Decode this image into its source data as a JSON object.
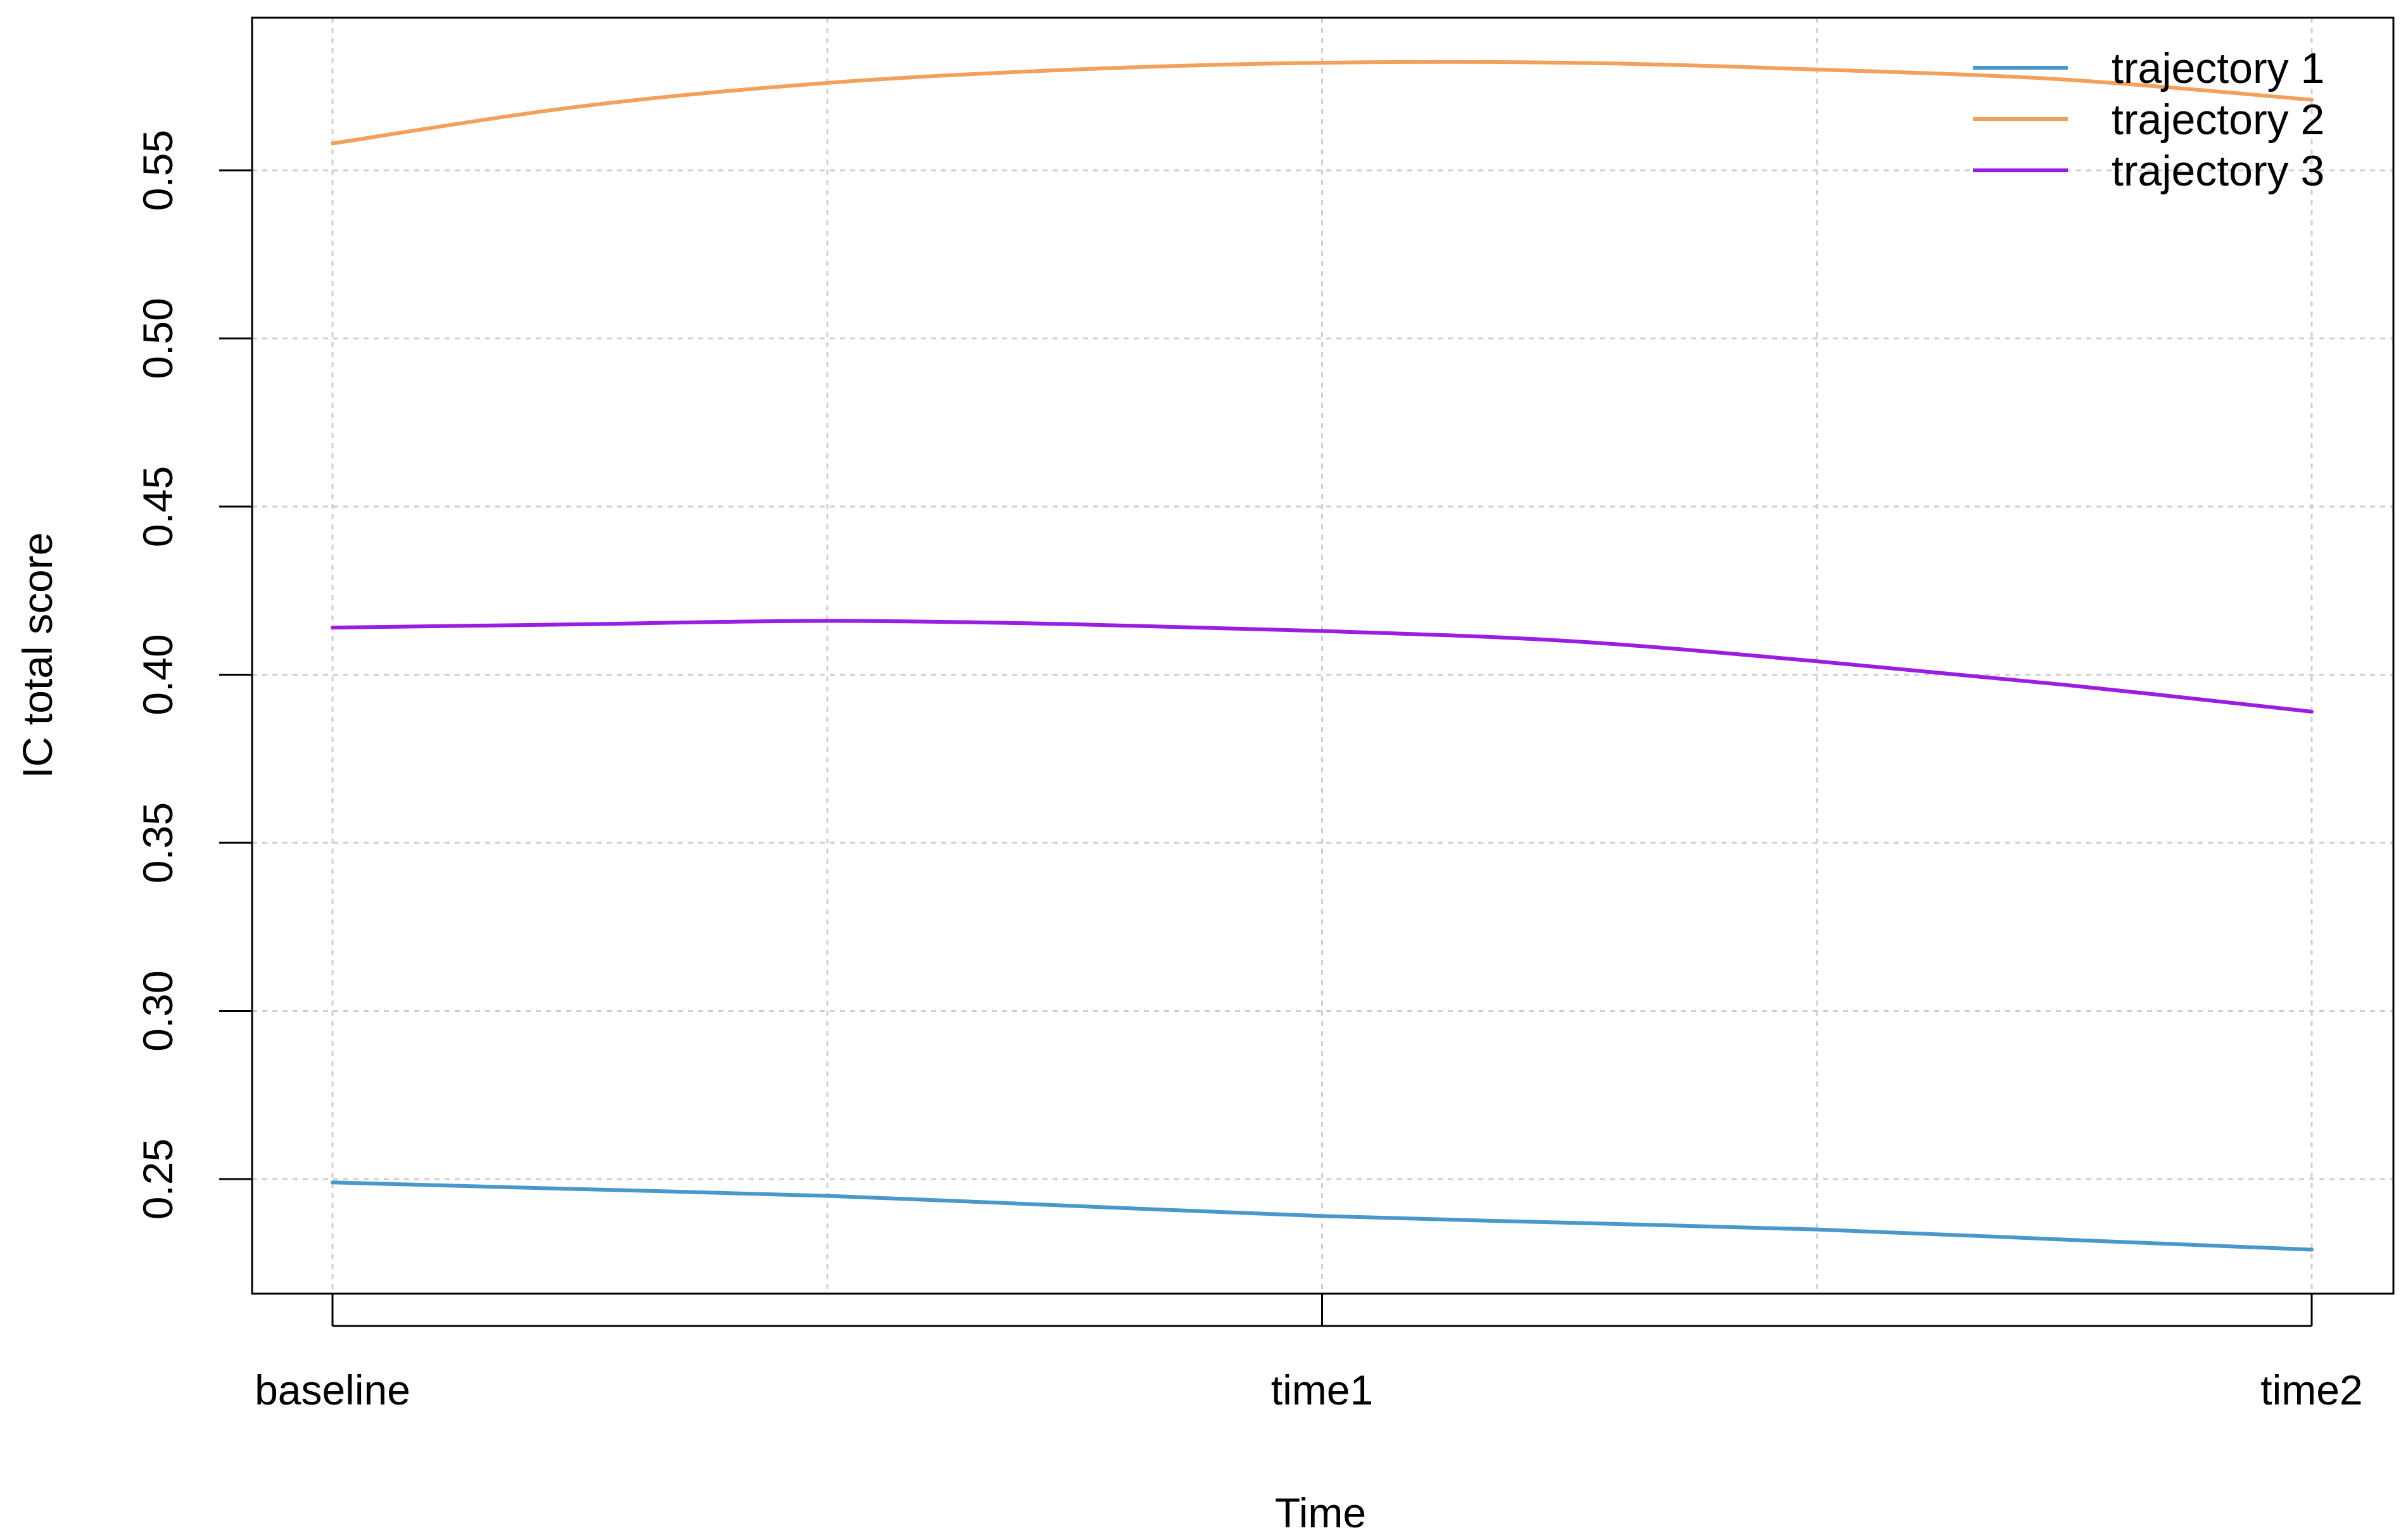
{
  "chart_data": {
    "type": "line",
    "title": "",
    "xlabel": "Time",
    "ylabel": "IC total score",
    "categories": [
      "baseline",
      "time1",
      "time2"
    ],
    "x_range": [
      0,
      2
    ],
    "ylim": [
      0.22,
      0.589
    ],
    "yticks": [
      0.25,
      0.3,
      0.35,
      0.4,
      0.45,
      0.5,
      0.55
    ],
    "ytick_labels": [
      "0.25",
      "0.30",
      "0.35",
      "0.40",
      "0.45",
      "0.50",
      "0.55"
    ],
    "grid": true,
    "grid_x": [
      0,
      0.5,
      1,
      1.5,
      2
    ],
    "legend_position": "top-right",
    "series": [
      {
        "name": "trajectory 1",
        "color": "#4a97c9",
        "x": [
          0,
          0.25,
          0.5,
          0.75,
          1.0,
          1.25,
          1.5,
          1.75,
          2.0
        ],
        "values": [
          0.249,
          0.247,
          0.245,
          0.242,
          0.239,
          0.237,
          0.235,
          0.232,
          0.229
        ]
      },
      {
        "name": "trajectory 2",
        "color": "#f2a15c",
        "x": [
          0,
          0.25,
          0.5,
          0.75,
          1.0,
          1.25,
          1.5,
          1.75,
          2.0
        ],
        "values": [
          0.558,
          0.569,
          0.576,
          0.58,
          0.582,
          0.582,
          0.58,
          0.577,
          0.571
        ]
      },
      {
        "name": "trajectory 3",
        "color": "#9a1de0",
        "x": [
          0,
          0.25,
          0.5,
          0.75,
          1.0,
          1.25,
          1.5,
          1.75,
          2.0
        ],
        "values": [
          0.414,
          0.415,
          0.416,
          0.415,
          0.413,
          0.41,
          0.404,
          0.397,
          0.389
        ]
      }
    ]
  }
}
